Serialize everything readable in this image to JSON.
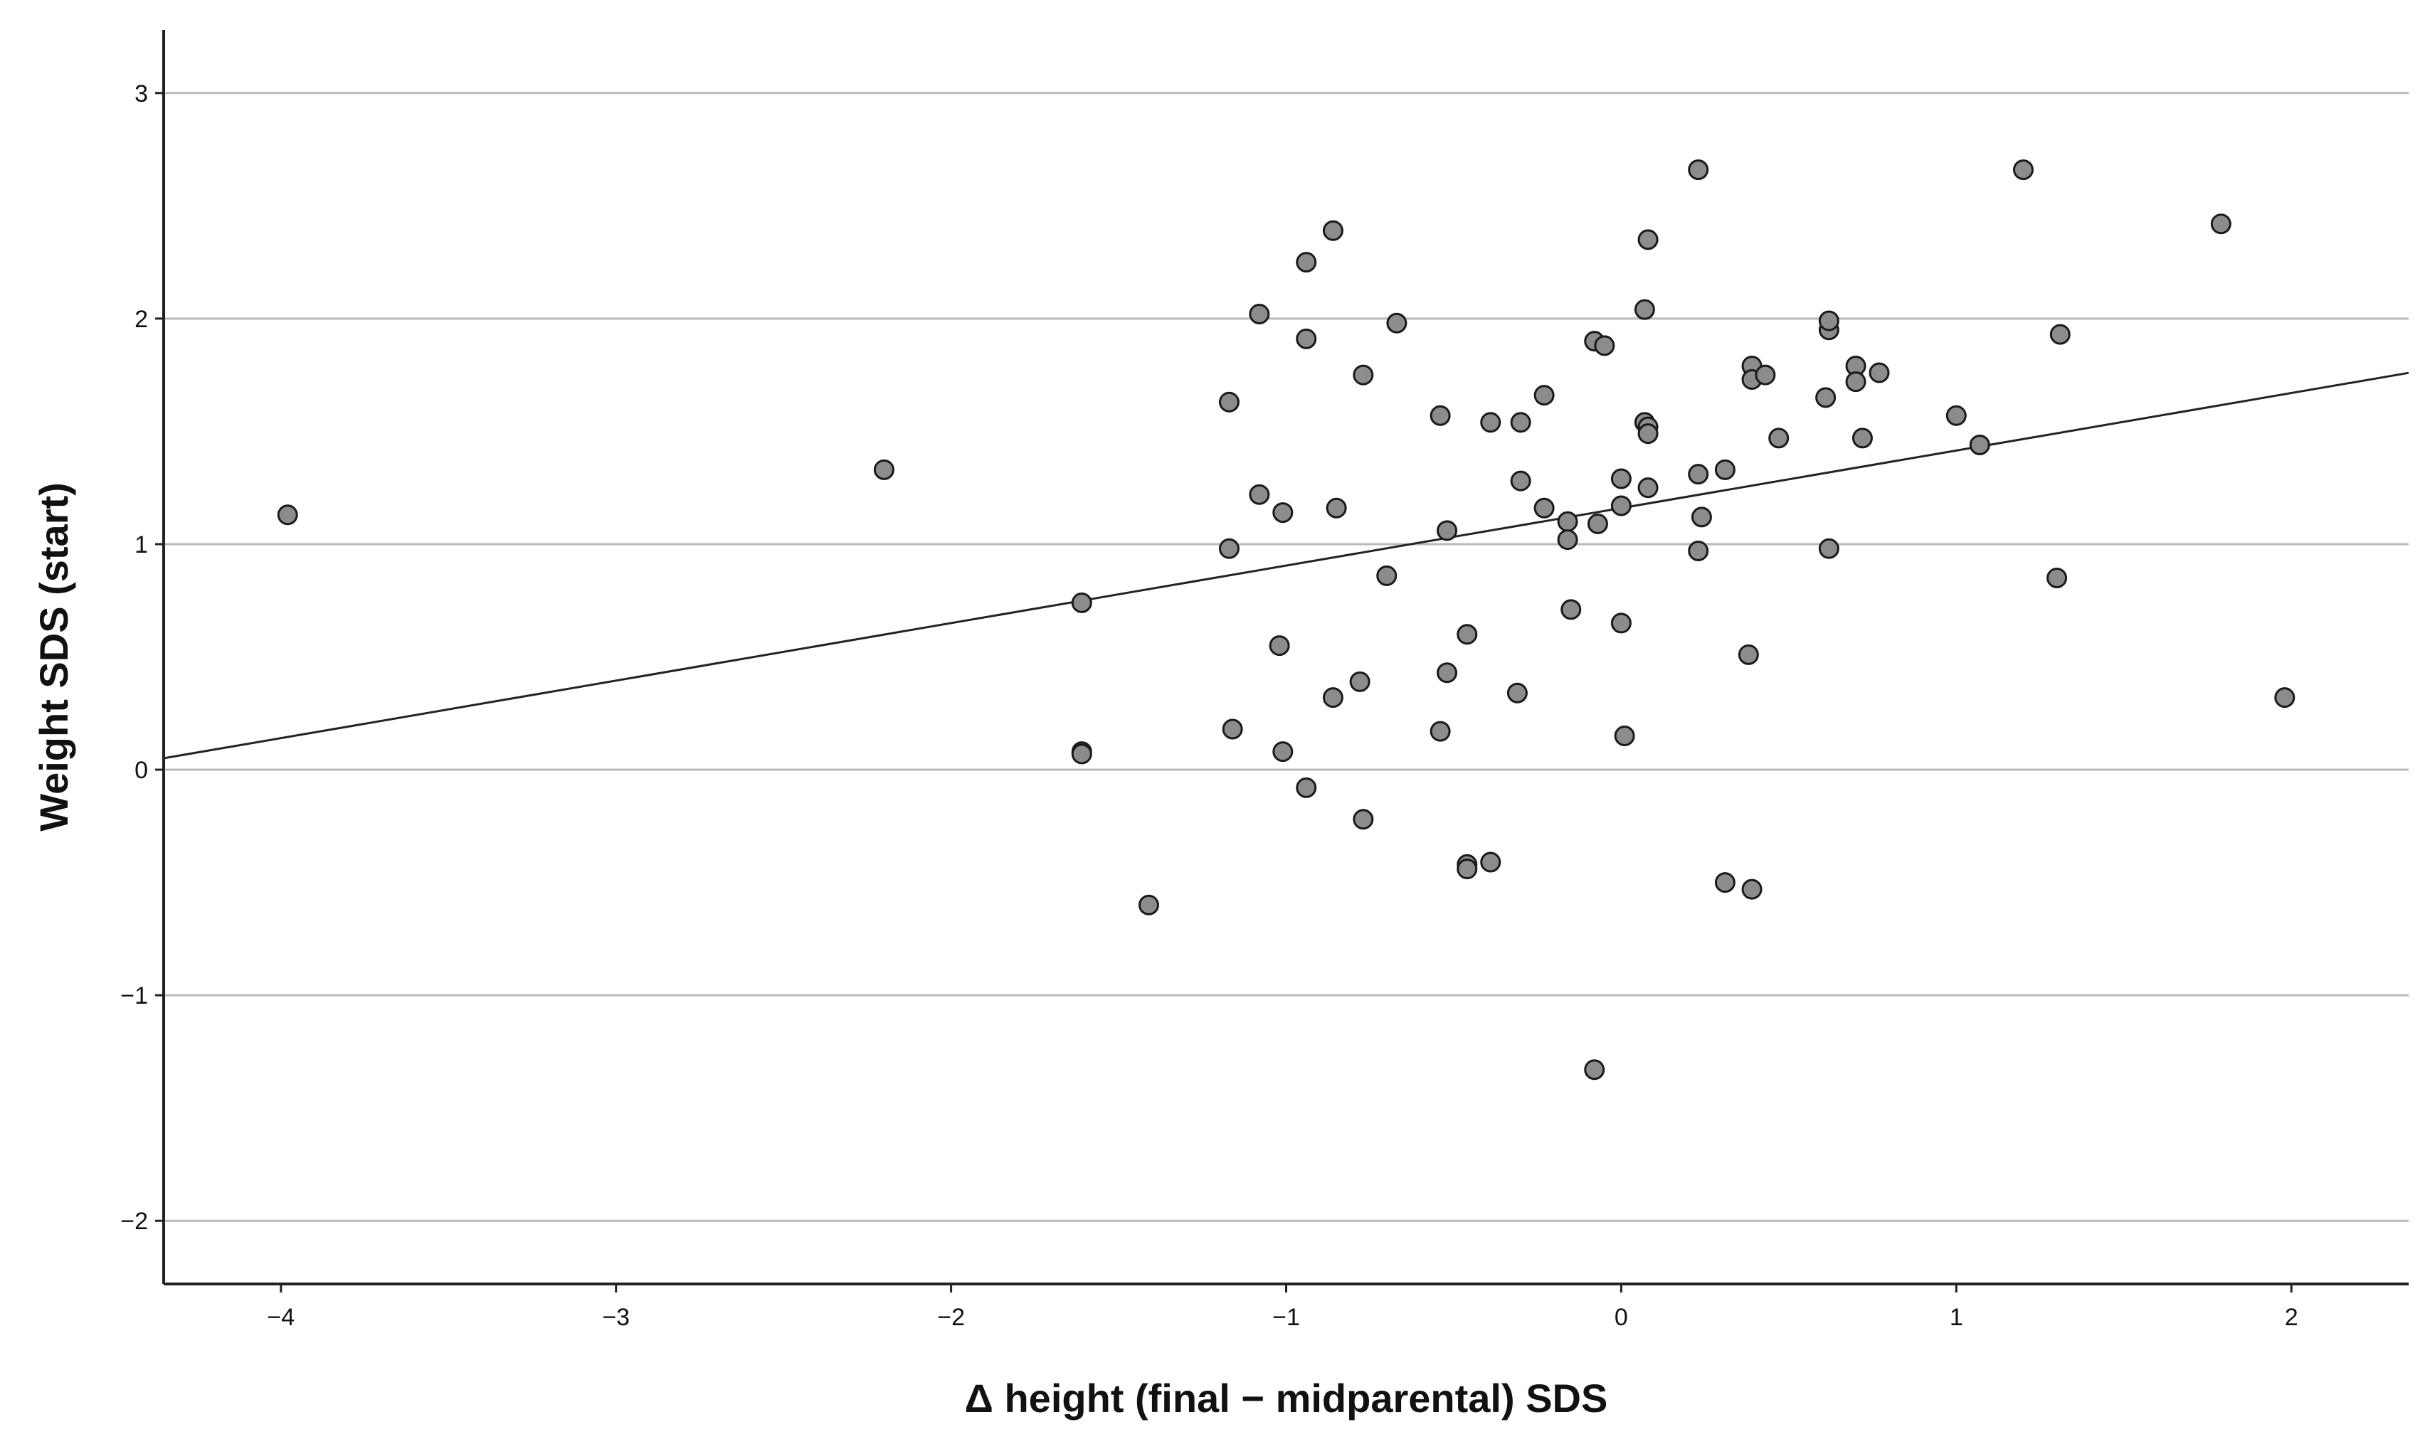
{
  "chart_data": {
    "type": "scatter",
    "title": "",
    "xlabel": "Δ height (final − midparental) SDS",
    "ylabel": "Weight SDS (start)",
    "xlim": [
      -4.35,
      2.35
    ],
    "ylim": [
      -2.28,
      3.28
    ],
    "xticks": [
      -4,
      -3,
      -2,
      -1,
      0,
      1,
      2
    ],
    "yticks": [
      -2,
      -1,
      0,
      1,
      2,
      3
    ],
    "xtick_labels": [
      "−4",
      "−3",
      "−2",
      "−1",
      "0",
      "1",
      "2"
    ],
    "ytick_labels": [
      "−2",
      "−1",
      "0",
      "1",
      "2",
      "3"
    ],
    "grid": "horizontal",
    "fit_line": {
      "slope": 0.255,
      "intercept": 1.16
    },
    "points": [
      {
        "x": -3.98,
        "y": 1.13
      },
      {
        "x": -2.2,
        "y": 1.33
      },
      {
        "x": -1.61,
        "y": 0.74
      },
      {
        "x": -1.61,
        "y": 0.08
      },
      {
        "x": -1.61,
        "y": 0.07
      },
      {
        "x": -1.41,
        "y": -0.6
      },
      {
        "x": -1.17,
        "y": 1.63
      },
      {
        "x": -1.17,
        "y": 0.98
      },
      {
        "x": -1.16,
        "y": 0.18
      },
      {
        "x": -1.08,
        "y": 2.02
      },
      {
        "x": -1.08,
        "y": 1.22
      },
      {
        "x": -1.01,
        "y": 1.14
      },
      {
        "x": -1.02,
        "y": 0.55
      },
      {
        "x": -1.01,
        "y": 0.08
      },
      {
        "x": -0.94,
        "y": 2.25
      },
      {
        "x": -0.94,
        "y": 1.91
      },
      {
        "x": -0.94,
        "y": -0.08
      },
      {
        "x": -0.86,
        "y": 2.39
      },
      {
        "x": -0.85,
        "y": 1.16
      },
      {
        "x": -0.86,
        "y": 0.32
      },
      {
        "x": -0.77,
        "y": 1.75
      },
      {
        "x": -0.78,
        "y": 0.39
      },
      {
        "x": -0.77,
        "y": -0.22
      },
      {
        "x": -0.7,
        "y": 0.86
      },
      {
        "x": -0.67,
        "y": 1.98
      },
      {
        "x": -0.54,
        "y": 1.57
      },
      {
        "x": -0.54,
        "y": 0.17
      },
      {
        "x": -0.52,
        "y": 1.06
      },
      {
        "x": -0.52,
        "y": 0.43
      },
      {
        "x": -0.46,
        "y": 0.6
      },
      {
        "x": -0.46,
        "y": -0.42
      },
      {
        "x": -0.46,
        "y": -0.44
      },
      {
        "x": -0.39,
        "y": 1.54
      },
      {
        "x": -0.39,
        "y": -0.41
      },
      {
        "x": -0.3,
        "y": 1.54
      },
      {
        "x": -0.3,
        "y": 1.28
      },
      {
        "x": -0.31,
        "y": 0.34
      },
      {
        "x": -0.23,
        "y": 1.66
      },
      {
        "x": -0.23,
        "y": 1.16
      },
      {
        "x": -0.16,
        "y": 1.1
      },
      {
        "x": -0.16,
        "y": 1.02
      },
      {
        "x": -0.15,
        "y": 0.71
      },
      {
        "x": -0.08,
        "y": 1.9
      },
      {
        "x": -0.05,
        "y": 1.88
      },
      {
        "x": -0.07,
        "y": 1.09
      },
      {
        "x": -0.08,
        "y": -1.33
      },
      {
        "x": 0.0,
        "y": 1.29
      },
      {
        "x": 0.0,
        "y": 1.17
      },
      {
        "x": 0.0,
        "y": 0.65
      },
      {
        "x": 0.01,
        "y": 0.15
      },
      {
        "x": 0.07,
        "y": 2.04
      },
      {
        "x": 0.07,
        "y": 1.54
      },
      {
        "x": 0.08,
        "y": 1.52
      },
      {
        "x": 0.08,
        "y": 1.49
      },
      {
        "x": 0.08,
        "y": 1.25
      },
      {
        "x": 0.08,
        "y": 2.35
      },
      {
        "x": 0.23,
        "y": 2.66
      },
      {
        "x": 0.23,
        "y": 1.31
      },
      {
        "x": 0.24,
        "y": 1.12
      },
      {
        "x": 0.23,
        "y": 0.97
      },
      {
        "x": 0.31,
        "y": 1.33
      },
      {
        "x": 0.31,
        "y": -0.5
      },
      {
        "x": 0.39,
        "y": 1.79
      },
      {
        "x": 0.39,
        "y": 1.73
      },
      {
        "x": 0.43,
        "y": 1.75
      },
      {
        "x": 0.38,
        "y": 0.51
      },
      {
        "x": 0.39,
        "y": -0.53
      },
      {
        "x": 0.47,
        "y": 1.47
      },
      {
        "x": 0.61,
        "y": 1.65
      },
      {
        "x": 0.62,
        "y": 1.95
      },
      {
        "x": 0.62,
        "y": 1.99
      },
      {
        "x": 0.62,
        "y": 0.98
      },
      {
        "x": 0.7,
        "y": 1.79
      },
      {
        "x": 0.7,
        "y": 1.72
      },
      {
        "x": 0.72,
        "y": 1.47
      },
      {
        "x": 0.77,
        "y": 1.76
      },
      {
        "x": 1.0,
        "y": 1.57
      },
      {
        "x": 1.07,
        "y": 1.44
      },
      {
        "x": 1.2,
        "y": 2.66
      },
      {
        "x": 1.31,
        "y": 1.93
      },
      {
        "x": 1.3,
        "y": 0.85
      },
      {
        "x": 1.79,
        "y": 2.42
      },
      {
        "x": 1.98,
        "y": 0.32
      }
    ]
  }
}
